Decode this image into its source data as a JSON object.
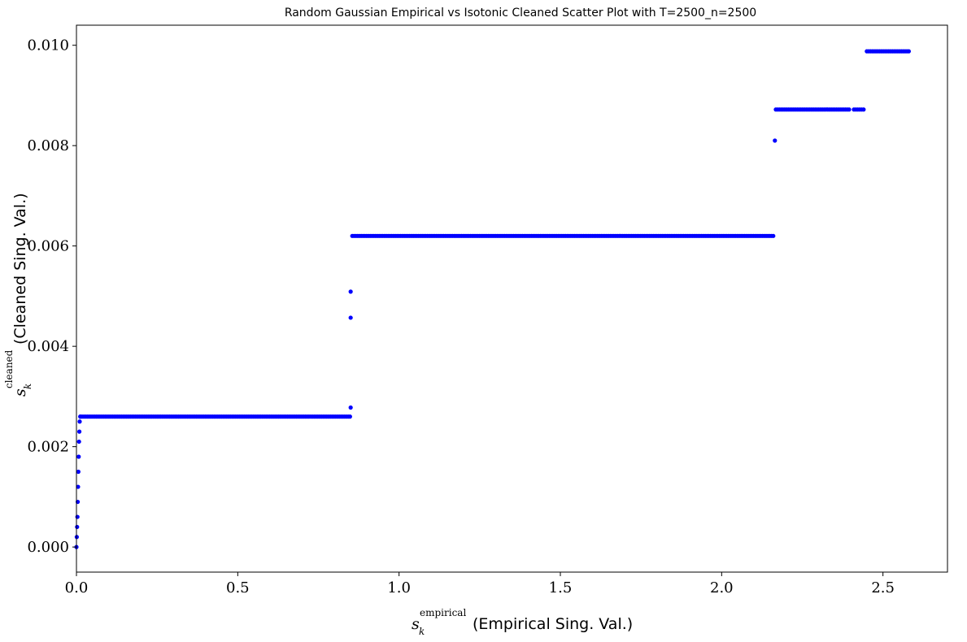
{
  "chart_data": {
    "type": "scatter",
    "title": "Random Gaussian Empirical vs Isotonic Cleaned Scatter Plot with T=2500_n=2500",
    "xlabel": {
      "symbol": "s",
      "subscript": "k",
      "superscript": "empirical",
      "text": "(Empirical Sing. Val.)"
    },
    "ylabel": {
      "symbol": "s",
      "subscript": "k",
      "superscript": "cleaned",
      "text": "(Cleaned Sing. Val.)"
    },
    "xlim": [
      0.0,
      2.7
    ],
    "ylim": [
      -0.0005,
      0.0104
    ],
    "x_ticks": [
      0.0,
      0.5,
      1.0,
      1.5,
      2.0,
      2.5
    ],
    "x_tick_labels": [
      "0.0",
      "0.5",
      "1.0",
      "1.5",
      "2.0",
      "2.5"
    ],
    "y_ticks": [
      0.0,
      0.002,
      0.004,
      0.006,
      0.008,
      0.01
    ],
    "y_tick_labels": [
      "0.000",
      "0.002",
      "0.004",
      "0.006",
      "0.008",
      "0.010"
    ],
    "grid": false,
    "marker_color": "#0000ff",
    "series": [
      {
        "points": [
          [
            0.0,
            0.0
          ],
          [
            0.001,
            0.0002
          ],
          [
            0.002,
            0.0004
          ],
          [
            0.003,
            0.0006
          ],
          [
            0.004,
            0.0009
          ],
          [
            0.005,
            0.0012
          ],
          [
            0.006,
            0.0015
          ],
          [
            0.007,
            0.0018
          ],
          [
            0.008,
            0.0021
          ],
          [
            0.009,
            0.0023
          ],
          [
            0.01,
            0.0025
          ],
          [
            0.012,
            0.0026
          ],
          [
            0.85,
            0.00278
          ],
          [
            0.85,
            0.00457
          ],
          [
            0.85,
            0.00509
          ],
          [
            2.165,
            0.0081
          ]
        ],
        "segments": [
          {
            "x_start": 0.012,
            "x_end": 0.848,
            "y": 0.0026
          },
          {
            "x_start": 0.855,
            "x_end": 2.16,
            "y": 0.0062
          },
          {
            "x_start": 2.168,
            "x_end": 2.395,
            "y": 0.00872
          },
          {
            "x_start": 2.41,
            "x_end": 2.44,
            "y": 0.00872
          },
          {
            "x_start": 2.45,
            "x_end": 2.58,
            "y": 0.00988
          }
        ]
      }
    ]
  }
}
